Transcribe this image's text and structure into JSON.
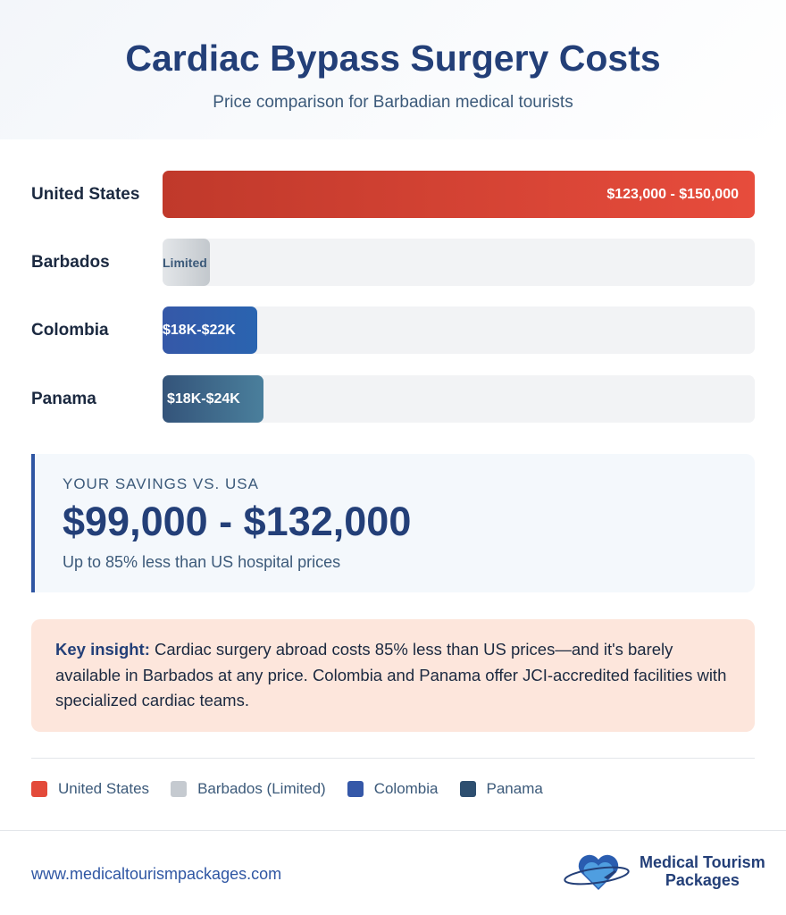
{
  "header": {
    "title": "Cardiac Bypass Surgery Costs",
    "subtitle": "Price comparison for Barbadian medical tourists"
  },
  "chart_data": {
    "type": "bar",
    "orientation": "horizontal",
    "categories": [
      "United States",
      "Barbados",
      "Colombia",
      "Panama"
    ],
    "values_percent_of_max": [
      100,
      8,
      16,
      17
    ],
    "data_labels": [
      "$123,000 - $150,000",
      "Limited",
      "$18K-$22K",
      "$18K-$24K"
    ],
    "colors": [
      "#e34a3a",
      "#c5cad0",
      "#2f56a3",
      "#2e5575"
    ]
  },
  "savings": {
    "label": "YOUR SAVINGS VS. USA",
    "value": "$99,000 - $132,000",
    "note": "Up to 85% less than US hospital prices"
  },
  "insight": {
    "lead": "Key insight:",
    "text": " Cardiac surgery abroad costs 85% less than US prices—and it's barely available in Barbados at any price. Colombia and Panama offer JCI-accredited facilities with specialized cardiac teams."
  },
  "legend": [
    {
      "label": "United States",
      "color": "#e34a3a"
    },
    {
      "label": "Barbados (Limited)",
      "color": "#c5cad0"
    },
    {
      "label": "Colombia",
      "color": "#3558a8"
    },
    {
      "label": "Panama",
      "color": "#2e4f70"
    }
  ],
  "footer": {
    "url": "www.medicaltourismpackages.com",
    "logo_line1": "Medical Tourism",
    "logo_line2": "Packages"
  }
}
